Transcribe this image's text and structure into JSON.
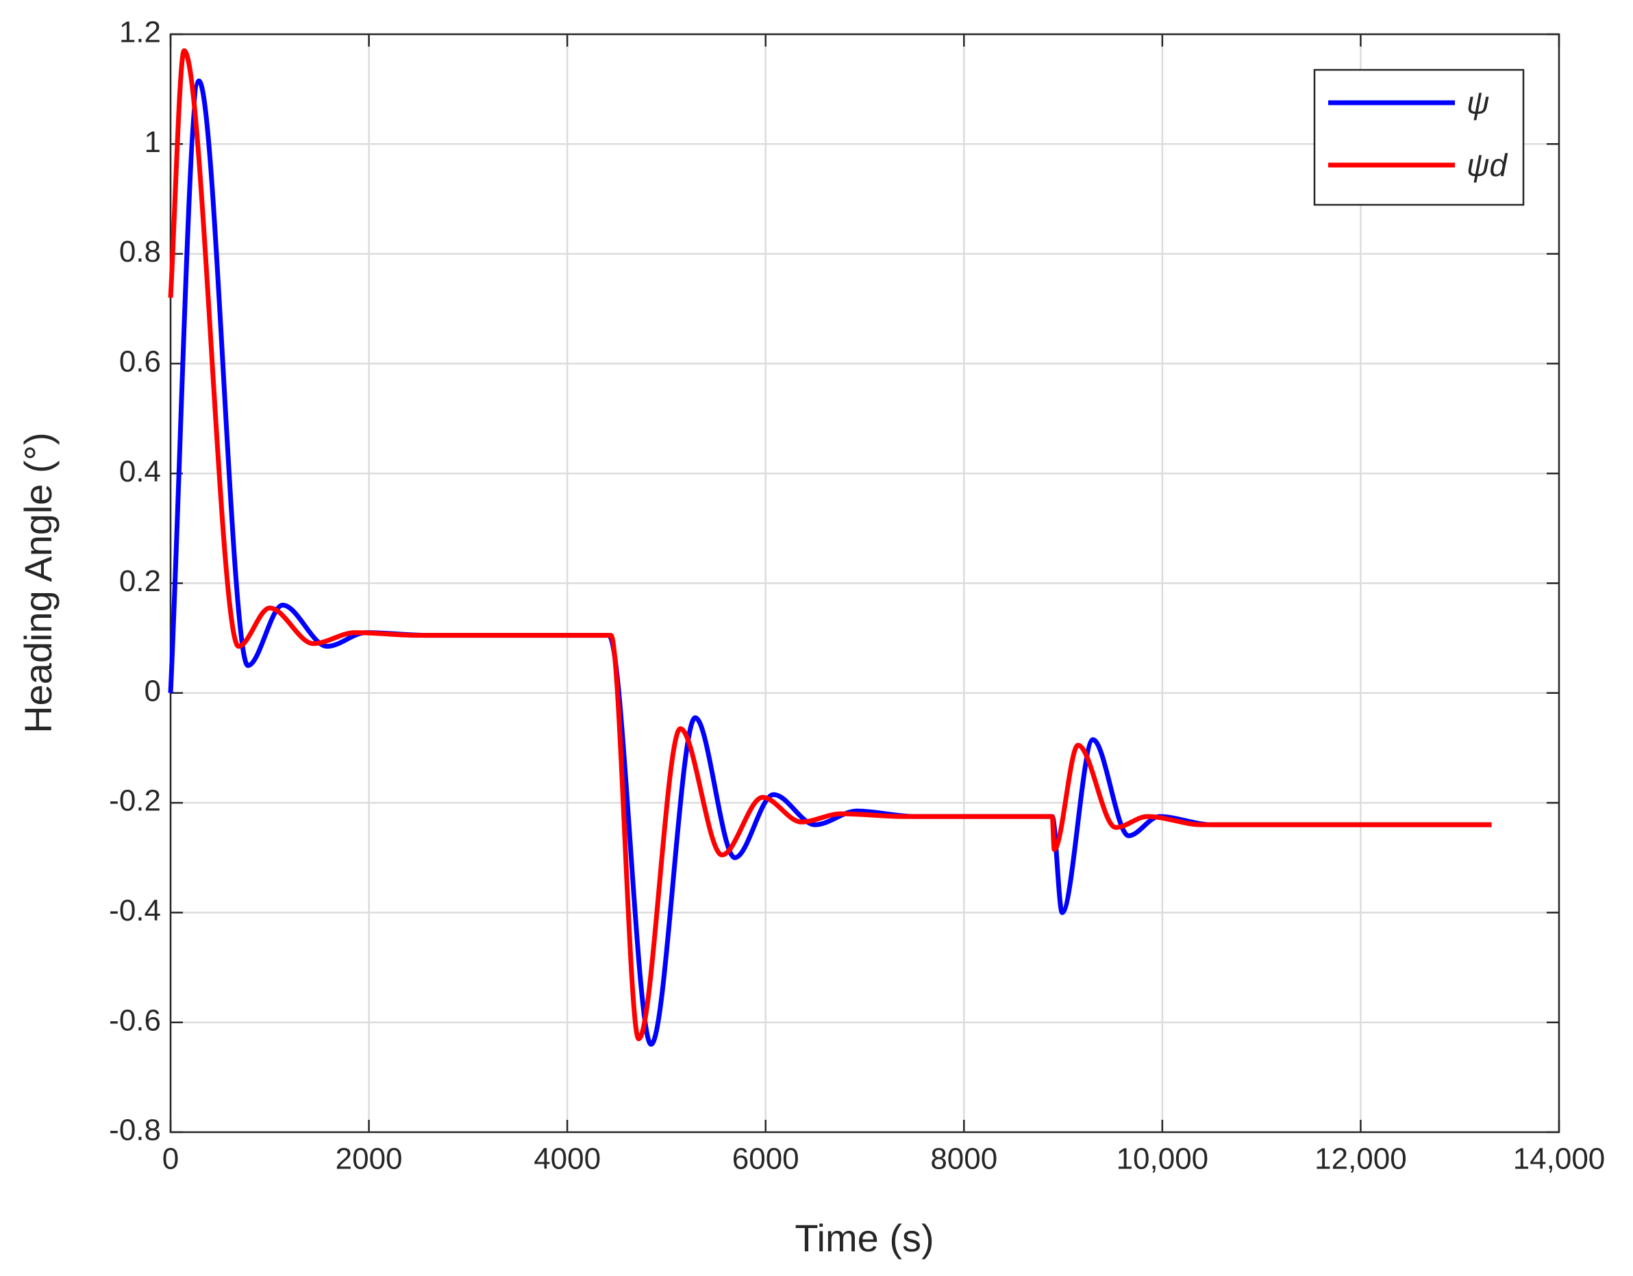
{
  "chart_data": {
    "type": "line",
    "xlabel": "Time (s)",
    "ylabel": "Heading Angle (°)",
    "xlim": [
      0,
      14000
    ],
    "ylim": [
      -0.8,
      1.2
    ],
    "xticks": [
      0,
      2000,
      4000,
      6000,
      8000,
      {
        "value": 10000,
        "label": "10,000"
      },
      {
        "value": 12000,
        "label": "12,000"
      },
      {
        "value": 14000,
        "label": "14,000"
      }
    ],
    "yticks": [
      -0.8,
      -0.6,
      -0.4,
      -0.2,
      0,
      0.2,
      0.4,
      0.6,
      0.8,
      1,
      1.2
    ],
    "grid": true,
    "legend": "upper right",
    "series": [
      {
        "name": "ψ",
        "color": "#0000ff",
        "x": [
          0,
          285,
          780,
          1130,
          1580,
          1970,
          2600,
          4420,
          4845,
          5290,
          5690,
          6080,
          6500,
          6920,
          7500,
          8890,
          8990,
          9300,
          9660,
          9970,
          10500,
          13320
        ],
        "values": [
          0,
          1.115,
          0.05,
          0.16,
          0.085,
          0.11,
          0.105,
          0.105,
          -0.64,
          -0.045,
          -0.3,
          -0.185,
          -0.24,
          -0.215,
          -0.225,
          -0.225,
          -0.4,
          -0.085,
          -0.26,
          -0.225,
          -0.24,
          -0.24
        ]
      },
      {
        "name": "ψd",
        "color": "#ff0000",
        "x": [
          0,
          137,
          685,
          1000,
          1440,
          1860,
          2500,
          4440,
          4720,
          5140,
          5560,
          5970,
          6360,
          6760,
          7400,
          8890,
          8910,
          9150,
          9530,
          9850,
          10400,
          13320
        ],
        "values": [
          0.72,
          1.17,
          0.085,
          0.155,
          0.09,
          0.11,
          0.105,
          0.105,
          -0.63,
          -0.065,
          -0.295,
          -0.19,
          -0.235,
          -0.22,
          -0.225,
          -0.225,
          -0.285,
          -0.095,
          -0.245,
          -0.225,
          -0.24,
          -0.24
        ]
      }
    ]
  }
}
